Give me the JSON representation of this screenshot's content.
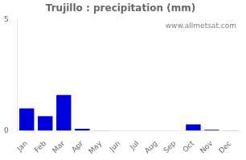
{
  "chart_data": {
    "type": "bar",
    "title": "Trujillo : precipitation (mm)",
    "categories": [
      "Jan",
      "Feb",
      "Mar",
      "Apr",
      "May",
      "Jun",
      "Jul",
      "Aug",
      "Sep",
      "Oct",
      "Nov",
      "Dec"
    ],
    "values": [
      1.0,
      0.65,
      1.6,
      0.08,
      0.01,
      0.0,
      0.0,
      0.0,
      0.0,
      0.28,
      0.04,
      0.01
    ],
    "color": "#0000DD",
    "ylim": [
      0,
      5
    ],
    "yticks": [
      0,
      5
    ],
    "grid": false,
    "annotations": [
      "www.allmetsat.com"
    ]
  }
}
